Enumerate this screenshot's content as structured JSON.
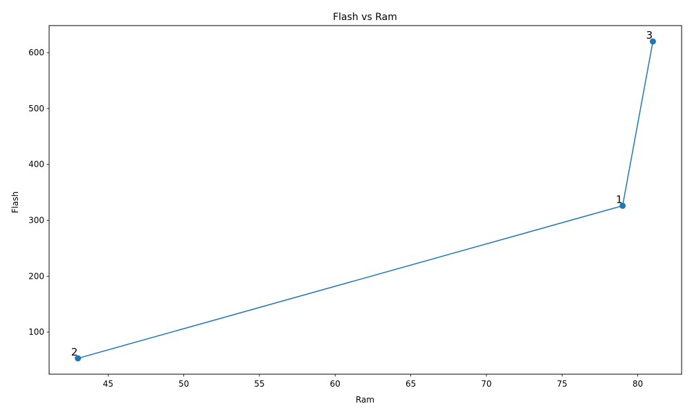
{
  "chart_data": {
    "type": "line",
    "title": "Flash vs Ram",
    "xlabel": "Ram",
    "ylabel": "Flash",
    "xlim": [
      41.1,
      82.9
    ],
    "ylim": [
      24.6,
      648.4
    ],
    "xticks": [
      45,
      50,
      55,
      60,
      65,
      70,
      75,
      80
    ],
    "yticks": [
      100,
      200,
      300,
      400,
      500,
      600
    ],
    "grid": false,
    "legend": "none",
    "series": [
      {
        "x": [
          43,
          79,
          81
        ],
        "y": [
          53,
          326,
          620
        ],
        "point_labels": [
          "2",
          "1",
          "3"
        ],
        "color": "#1f77b4",
        "marker": "circle"
      }
    ]
  }
}
